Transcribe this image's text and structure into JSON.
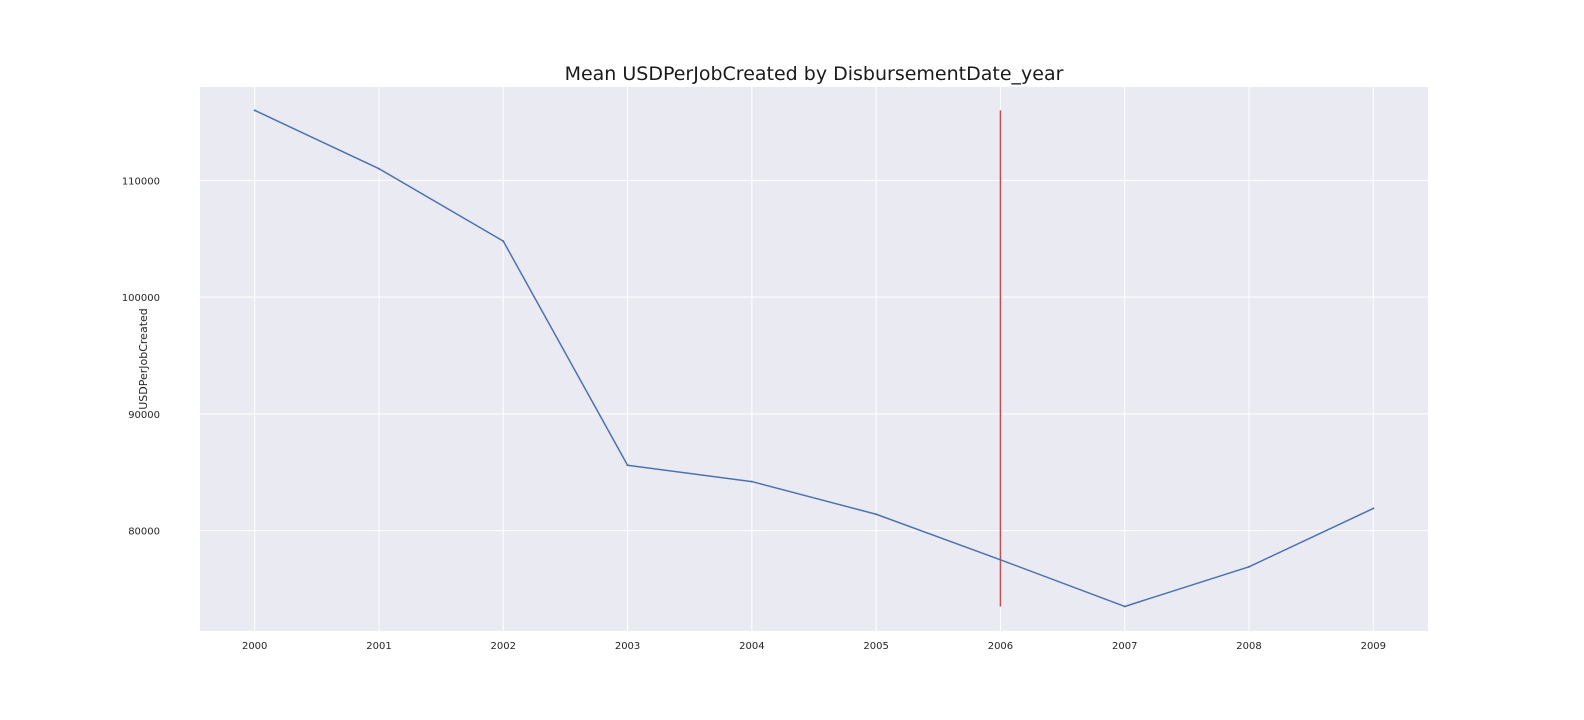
{
  "chart_data": {
    "type": "line",
    "title": "Mean USDPerJobCreated by DisbursementDate_year",
    "xlabel": "",
    "ylabel": "USDPerJobCreated",
    "x": [
      2000,
      2001,
      2002,
      2003,
      2004,
      2005,
      2006,
      2007,
      2008,
      2009
    ],
    "series": [
      {
        "values": [
          116000,
          111000,
          104800,
          85600,
          84200,
          81400,
          77500,
          73500,
          76900,
          81900
        ],
        "color": "#4c72b0"
      }
    ],
    "x_ticks": [
      "2000",
      "2001",
      "2002",
      "2003",
      "2004",
      "2005",
      "2006",
      "2007",
      "2008",
      "2009"
    ],
    "y_ticks": [
      "80000",
      "90000",
      "100000",
      "110000"
    ],
    "y_tick_values": [
      80000,
      90000,
      100000,
      110000
    ],
    "xlim": [
      1999.56,
      2009.44
    ],
    "ylim": [
      71400,
      118000
    ],
    "grid": true,
    "background": "#eaeaf2",
    "vertical_marker": {
      "x": 2006,
      "y_from": 73500,
      "y_to": 116000,
      "color": "#c44e52"
    }
  }
}
